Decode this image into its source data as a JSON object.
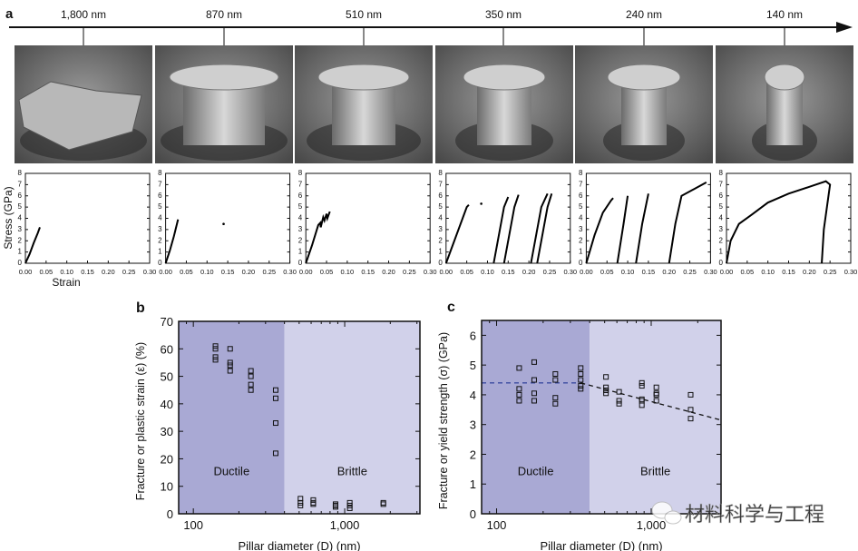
{
  "panel_a": {
    "label": "a",
    "diameters": [
      "1,800 nm",
      "870 nm",
      "510 nm",
      "350 nm",
      "240 nm",
      "140 nm"
    ],
    "ylabel": "Stress (GPa)",
    "xlabel": "Strain",
    "yticks": [
      "0",
      "1",
      "2",
      "3",
      "4",
      "5",
      "6",
      "7",
      "8"
    ],
    "xticks": [
      "0.00",
      "0.05",
      "0.10",
      "0.15",
      "0.20",
      "0.25",
      "0.30"
    ]
  },
  "chart_data": [
    {
      "type": "line",
      "panel": "a",
      "xlabel": "Strain",
      "ylabel": "Stress (GPa)",
      "xlim": [
        0,
        0.3
      ],
      "ylim": [
        0,
        8
      ],
      "plots": [
        {
          "diameter": "1,800 nm",
          "segments": [
            [
              [
                0,
                0
              ],
              [
                0.01,
                0.8
              ],
              [
                0.02,
                1.8
              ],
              [
                0.03,
                2.7
              ],
              [
                0.035,
                3.2
              ]
            ]
          ],
          "points": []
        },
        {
          "diameter": "870 nm",
          "segments": [
            [
              [
                0,
                0
              ],
              [
                0.01,
                1.1
              ],
              [
                0.02,
                2.4
              ],
              [
                0.03,
                3.9
              ]
            ]
          ],
          "points": [
            [
              0.14,
              3.5
            ]
          ]
        },
        {
          "diameter": "510 nm",
          "segments": [
            [
              [
                0,
                0
              ],
              [
                0.015,
                1.6
              ],
              [
                0.03,
                3.4
              ],
              [
                0.035,
                3.6
              ],
              [
                0.036,
                3.2
              ],
              [
                0.042,
                4.1
              ],
              [
                0.045,
                3.8
              ],
              [
                0.05,
                4.4
              ],
              [
                0.052,
                4.0
              ],
              [
                0.058,
                4.6
              ]
            ]
          ],
          "points": []
        },
        {
          "diameter": "350 nm",
          "segments": [
            [
              [
                0,
                0
              ],
              [
                0.02,
                2.0
              ],
              [
                0.04,
                4.0
              ],
              [
                0.05,
                5.0
              ],
              [
                0.055,
                5.2
              ]
            ],
            [
              [
                0.115,
                0
              ],
              [
                0.13,
                3.0
              ],
              [
                0.14,
                5.0
              ],
              [
                0.15,
                5.9
              ]
            ],
            [
              [
                0.14,
                0
              ],
              [
                0.155,
                3.0
              ],
              [
                0.165,
                5.0
              ],
              [
                0.175,
                6.1
              ]
            ],
            [
              [
                0.205,
                0
              ],
              [
                0.22,
                3.0
              ],
              [
                0.23,
                5.0
              ],
              [
                0.245,
                6.2
              ]
            ],
            [
              [
                0.22,
                0
              ],
              [
                0.235,
                3.0
              ],
              [
                0.245,
                5.0
              ],
              [
                0.255,
                6.2
              ]
            ]
          ],
          "points": [
            [
              0.085,
              5.3
            ]
          ]
        },
        {
          "diameter": "240 nm",
          "segments": [
            [
              [
                0,
                0
              ],
              [
                0.02,
                2.5
              ],
              [
                0.04,
                4.5
              ],
              [
                0.06,
                5.6
              ],
              [
                0.065,
                5.8
              ]
            ],
            [
              [
                0.075,
                0
              ],
              [
                0.09,
                3.5
              ],
              [
                0.1,
                6.0
              ]
            ],
            [
              [
                0.12,
                0
              ],
              [
                0.135,
                3.5
              ],
              [
                0.15,
                6.2
              ]
            ],
            [
              [
                0.2,
                0
              ],
              [
                0.215,
                3.5
              ],
              [
                0.23,
                6.0
              ],
              [
                0.26,
                6.6
              ],
              [
                0.29,
                7.2
              ]
            ]
          ],
          "points": []
        },
        {
          "diameter": "140 nm",
          "segments": [
            [
              [
                0,
                0
              ],
              [
                0.01,
                2.0
              ],
              [
                0.03,
                3.5
              ],
              [
                0.06,
                4.3
              ],
              [
                0.1,
                5.4
              ],
              [
                0.15,
                6.2
              ],
              [
                0.2,
                6.8
              ],
              [
                0.24,
                7.3
              ],
              [
                0.25,
                7.0
              ],
              [
                0.235,
                3.0
              ],
              [
                0.23,
                0
              ]
            ]
          ],
          "points": []
        }
      ]
    },
    {
      "type": "scatter",
      "panel": "b",
      "xlabel": "Pillar diameter (D) (nm)",
      "ylabel": "Fracture or plastic strain (ε) (%)",
      "xscale": "log",
      "xlim": [
        80,
        3140
      ],
      "ylim": [
        0,
        70
      ],
      "xticks": [
        "100",
        "1,000"
      ],
      "yticks": [
        "0",
        "10",
        "20",
        "30",
        "40",
        "50",
        "60",
        "70"
      ],
      "regions": [
        {
          "label": "Ductile",
          "from": 80,
          "to": 400,
          "color": "#a9a9d4"
        },
        {
          "label": "Brittle",
          "from": 400,
          "to": 3140,
          "color": "#d1d1ea"
        }
      ],
      "points": [
        [
          140,
          56
        ],
        [
          140,
          57
        ],
        [
          140,
          60
        ],
        [
          140,
          61
        ],
        [
          175,
          52
        ],
        [
          175,
          54
        ],
        [
          175,
          55
        ],
        [
          175,
          60
        ],
        [
          240,
          45
        ],
        [
          240,
          47
        ],
        [
          240,
          50
        ],
        [
          240,
          52
        ],
        [
          350,
          22
        ],
        [
          350,
          33
        ],
        [
          350,
          42
        ],
        [
          350,
          45
        ],
        [
          510,
          3
        ],
        [
          510,
          4
        ],
        [
          510,
          5.5
        ],
        [
          620,
          3.5
        ],
        [
          620,
          4
        ],
        [
          620,
          5
        ],
        [
          870,
          2.5
        ],
        [
          870,
          3
        ],
        [
          870,
          3.5
        ],
        [
          1080,
          2
        ],
        [
          1080,
          3
        ],
        [
          1080,
          4
        ],
        [
          1800,
          3.5
        ],
        [
          1800,
          4
        ]
      ]
    },
    {
      "type": "scatter",
      "panel": "c",
      "xlabel": "Pillar diameter (D) (nm)",
      "ylabel": "Fracture or yield strength (σ) (GPa)",
      "xscale": "log",
      "xlim": [
        80,
        2830
      ],
      "ylim": [
        0,
        6.5
      ],
      "xticks": [
        "100",
        "1,000"
      ],
      "yticks": [
        "0",
        "1",
        "2",
        "3",
        "4",
        "5",
        "6"
      ],
      "regions": [
        {
          "label": "Ductile",
          "from": 80,
          "to": 400,
          "color": "#a9a9d4"
        },
        {
          "label": "Brittle",
          "from": 400,
          "to": 2830,
          "color": "#d1d1ea"
        }
      ],
      "points": [
        [
          140,
          3.8
        ],
        [
          140,
          4.0
        ],
        [
          140,
          4.2
        ],
        [
          140,
          4.9
        ],
        [
          175,
          3.8
        ],
        [
          175,
          4.05
        ],
        [
          175,
          4.5
        ],
        [
          175,
          5.1
        ],
        [
          240,
          3.7
        ],
        [
          240,
          3.9
        ],
        [
          240,
          4.5
        ],
        [
          240,
          4.7
        ],
        [
          350,
          4.2
        ],
        [
          350,
          4.3
        ],
        [
          350,
          4.5
        ],
        [
          350,
          4.7
        ],
        [
          350,
          4.9
        ],
        [
          510,
          4.05
        ],
        [
          510,
          4.15
        ],
        [
          510,
          4.25
        ],
        [
          510,
          4.6
        ],
        [
          620,
          3.7
        ],
        [
          620,
          3.8
        ],
        [
          620,
          4.1
        ],
        [
          870,
          3.65
        ],
        [
          870,
          3.8
        ],
        [
          870,
          3.85
        ],
        [
          870,
          4.3
        ],
        [
          870,
          4.4
        ],
        [
          1080,
          3.8
        ],
        [
          1080,
          4.0
        ],
        [
          1080,
          4.05
        ],
        [
          1080,
          4.25
        ],
        [
          1800,
          3.2
        ],
        [
          1800,
          3.5
        ],
        [
          1800,
          4.0
        ]
      ],
      "trend_lines": [
        {
          "points": [
            [
              80,
              4.4
            ],
            [
              350,
              4.4
            ]
          ],
          "style": "dashed",
          "color": "#3a4aa0"
        },
        {
          "points": [
            [
              350,
              4.4
            ],
            [
              2830,
              3.15
            ]
          ],
          "style": "dashed",
          "color": "#111111"
        }
      ]
    }
  ],
  "panel_b": {
    "label": "b",
    "xlabel": "Pillar diameter (D) (nm)",
    "ylabel": "Fracture or plastic strain (ε) (%)",
    "ductile": "Ductile",
    "brittle": "Brittle"
  },
  "panel_c": {
    "label": "c",
    "xlabel": "Pillar diameter (D) (nm)",
    "ylabel": "Fracture or yield strength (σ) (GPa)",
    "ductile": "Ductile",
    "brittle": "Brittle"
  },
  "watermark": {
    "text": "材料科学与工程",
    "icon": "wechat-icon"
  }
}
